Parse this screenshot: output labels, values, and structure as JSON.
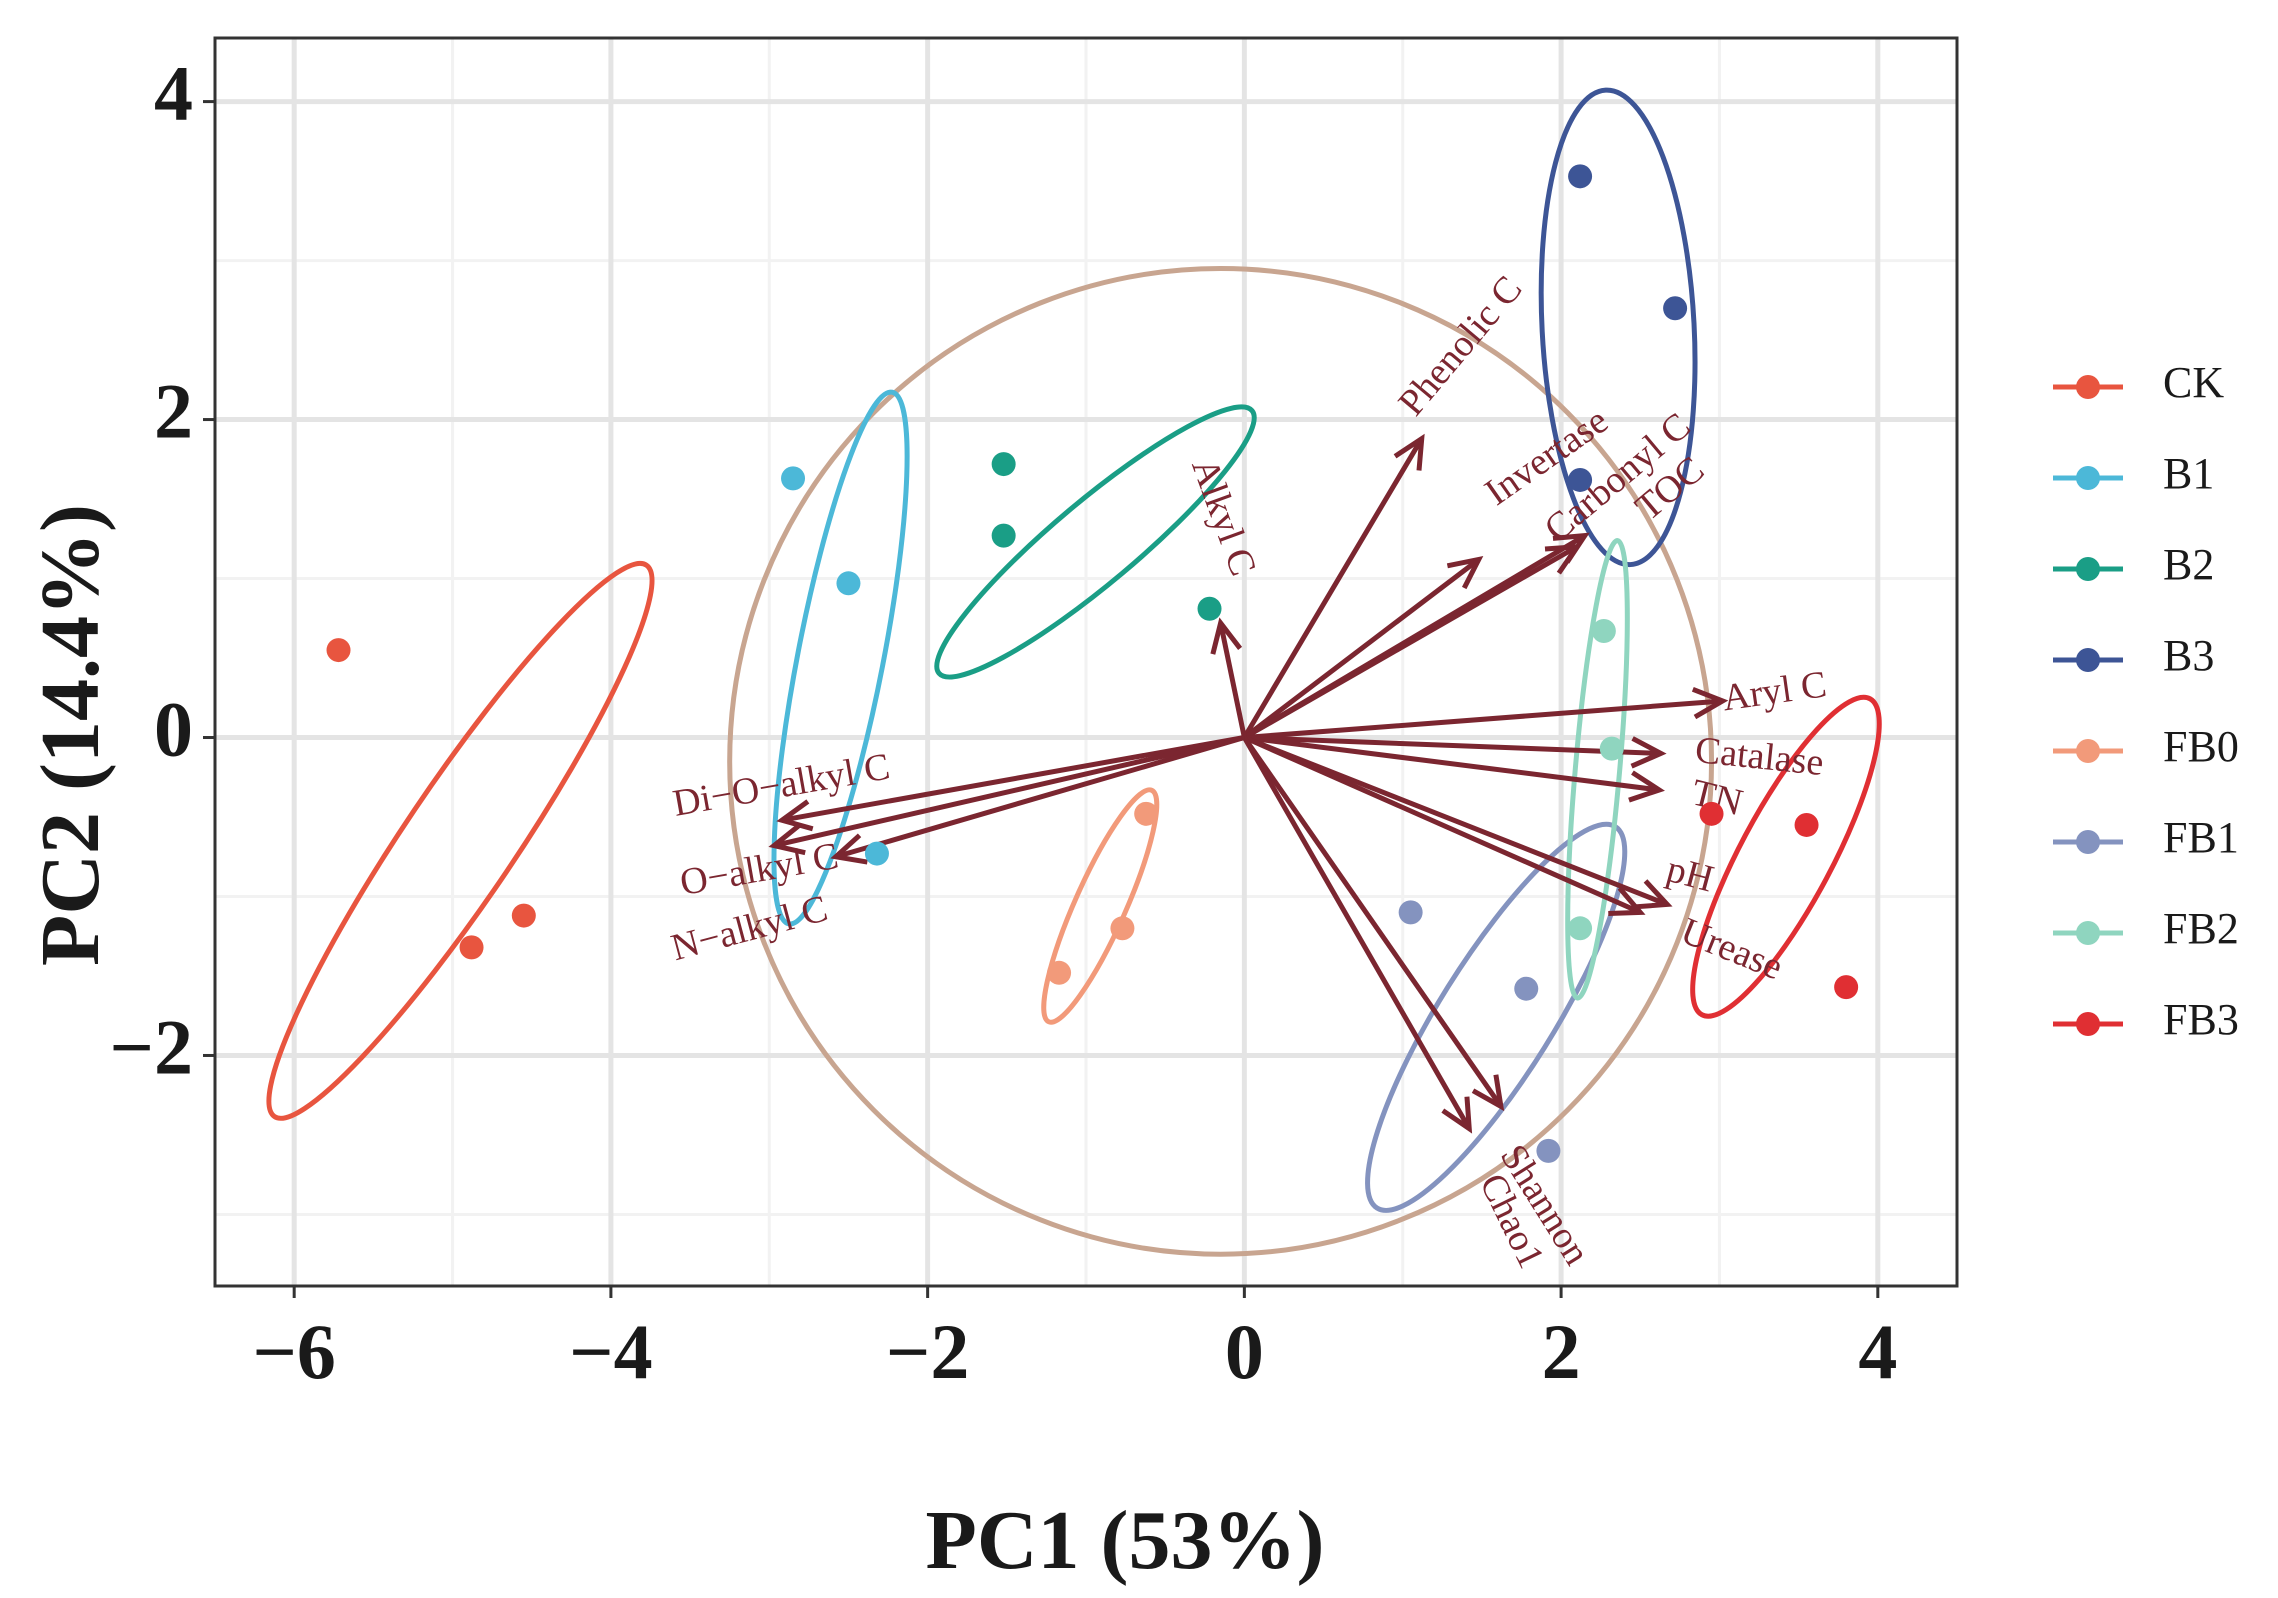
{
  "chart_data": {
    "type": "scatter",
    "subtype": "pca-biplot",
    "xlabel": "PC1 (53%)",
    "ylabel": "PC2 (14.4%)",
    "xlim": [
      -6.5,
      4.5
    ],
    "ylim": [
      -3.45,
      4.4
    ],
    "xticks": [
      -6,
      -4,
      -2,
      0,
      2,
      4
    ],
    "yticks": [
      -2,
      0,
      2,
      4
    ],
    "xtick_labels": [
      "−6",
      "−4",
      "−2",
      "0",
      "2",
      "4"
    ],
    "ytick_labels": [
      "−2",
      "0",
      "2",
      "4"
    ],
    "grid": true,
    "legend_position": "right",
    "correlation_circle": {
      "cx": -0.15,
      "cy": -0.15,
      "r": 3.1,
      "color": "#c8a590"
    },
    "arrow_color": "#7b2630",
    "series": [
      {
        "name": "CK",
        "color": "#e8553f",
        "points": [
          [
            -5.72,
            0.55
          ],
          [
            -4.88,
            -1.32
          ],
          [
            -4.55,
            -1.12
          ]
        ],
        "ellipse": {
          "cx": -4.95,
          "cy": -0.65,
          "rx": 2.1,
          "ry": 0.35,
          "angle": -56
        }
      },
      {
        "name": "B1",
        "color": "#4cb8d8",
        "points": [
          [
            -2.85,
            1.63
          ],
          [
            -2.5,
            0.97
          ],
          [
            -2.32,
            -0.73
          ]
        ],
        "ellipse": {
          "cx": -2.55,
          "cy": 0.5,
          "rx": 1.71,
          "ry": 0.27,
          "angle": -79
        }
      },
      {
        "name": "B2",
        "color": "#1a9e86",
        "points": [
          [
            -1.52,
            1.72
          ],
          [
            -1.52,
            1.27
          ],
          [
            -0.22,
            0.81
          ]
        ],
        "ellipse": {
          "cx": -0.94,
          "cy": 1.23,
          "rx": 1.29,
          "ry": 0.26,
          "angle": -40
        }
      },
      {
        "name": "B3",
        "color": "#3d5596",
        "points": [
          [
            2.12,
            3.53
          ],
          [
            2.72,
            2.7
          ],
          [
            2.12,
            1.62
          ]
        ],
        "ellipse": {
          "cx": 2.36,
          "cy": 2.58,
          "rx": 1.5,
          "ry": 0.48,
          "angle": -93
        }
      },
      {
        "name": "FB0",
        "color": "#f29a7a",
        "points": [
          [
            -0.62,
            -0.48
          ],
          [
            -0.77,
            -1.2
          ],
          [
            -1.17,
            -1.48
          ]
        ],
        "ellipse": {
          "cx": -0.91,
          "cy": -1.06,
          "rx": 0.8,
          "ry": 0.16,
          "angle": -66
        }
      },
      {
        "name": "FB1",
        "color": "#8493bf",
        "points": [
          [
            1.05,
            -1.1
          ],
          [
            1.78,
            -1.58
          ],
          [
            1.92,
            -2.6
          ]
        ],
        "ellipse": {
          "cx": 1.59,
          "cy": -1.76,
          "rx": 1.42,
          "ry": 0.36,
          "angle": -58
        }
      },
      {
        "name": "FB2",
        "color": "#8fd5bf",
        "points": [
          [
            2.27,
            0.67
          ],
          [
            2.32,
            -0.07
          ],
          [
            2.12,
            -1.2
          ]
        ],
        "ellipse": {
          "cx": 2.23,
          "cy": -0.2,
          "rx": 1.45,
          "ry": 0.14,
          "angle": -85
        }
      },
      {
        "name": "FB3",
        "color": "#e02f33",
        "points": [
          [
            2.95,
            -0.48
          ],
          [
            3.55,
            -0.55
          ],
          [
            3.8,
            -1.57
          ]
        ],
        "ellipse": {
          "cx": 3.42,
          "cy": -0.75,
          "rx": 1.13,
          "ry": 0.29,
          "angle": -62
        }
      }
    ],
    "arrows": [
      {
        "label": "Phenolic C",
        "x": 1.12,
        "y": 1.88,
        "lx": 1.38,
        "ly": 2.45,
        "rot": -50
      },
      {
        "label": "Invertase",
        "x": 1.48,
        "y": 1.12,
        "lx": 1.92,
        "ly": 1.75,
        "rot": -35
      },
      {
        "label": "Carbonyl C",
        "x": 2.15,
        "y": 1.27,
        "lx": 2.37,
        "ly": 1.62,
        "rot": -40
      },
      {
        "label": "TOC",
        "x": 2.1,
        "y": 1.2,
        "lx": 2.7,
        "ly": 1.55,
        "rot": -40
      },
      {
        "label": "Aryl C",
        "x": 3.02,
        "y": 0.23,
        "lx": 3.35,
        "ly": 0.27,
        "rot": -8
      },
      {
        "label": "Catalase",
        "x": 2.63,
        "y": -0.1,
        "lx": 3.25,
        "ly": -0.14,
        "rot": 6
      },
      {
        "label": "TN",
        "x": 2.62,
        "y": -0.33,
        "lx": 2.98,
        "ly": -0.4,
        "rot": 14
      },
      {
        "label": "pH",
        "x": 2.67,
        "y": -1.05,
        "lx": 2.81,
        "ly": -0.88,
        "rot": 15
      },
      {
        "label": "Urease",
        "x": 2.5,
        "y": -1.1,
        "lx": 3.07,
        "ly": -1.35,
        "rot": 22
      },
      {
        "label": "Shannon",
        "x": 1.62,
        "y": -2.32,
        "lx": 1.88,
        "ly": -2.95,
        "rot": 58
      },
      {
        "label": "Chao1",
        "x": 1.42,
        "y": -2.46,
        "lx": 1.67,
        "ly": -3.05,
        "rot": 64
      },
      {
        "label": "Alkyl C",
        "x": -0.15,
        "y": 0.72,
        "lx": -0.15,
        "ly": 1.38,
        "rot": 70
      },
      {
        "label": "Di−O−alkyl C",
        "x": -2.92,
        "y": -0.52,
        "lx": -2.92,
        "ly": -0.32,
        "rot": -10
      },
      {
        "label": "O−alkyl C",
        "x": -2.97,
        "y": -0.68,
        "lx": -3.06,
        "ly": -0.85,
        "rot": -10
      },
      {
        "label": "N−alkyl C",
        "x": -2.58,
        "y": -0.75,
        "lx": -3.12,
        "ly": -1.22,
        "rot": -15
      }
    ]
  }
}
